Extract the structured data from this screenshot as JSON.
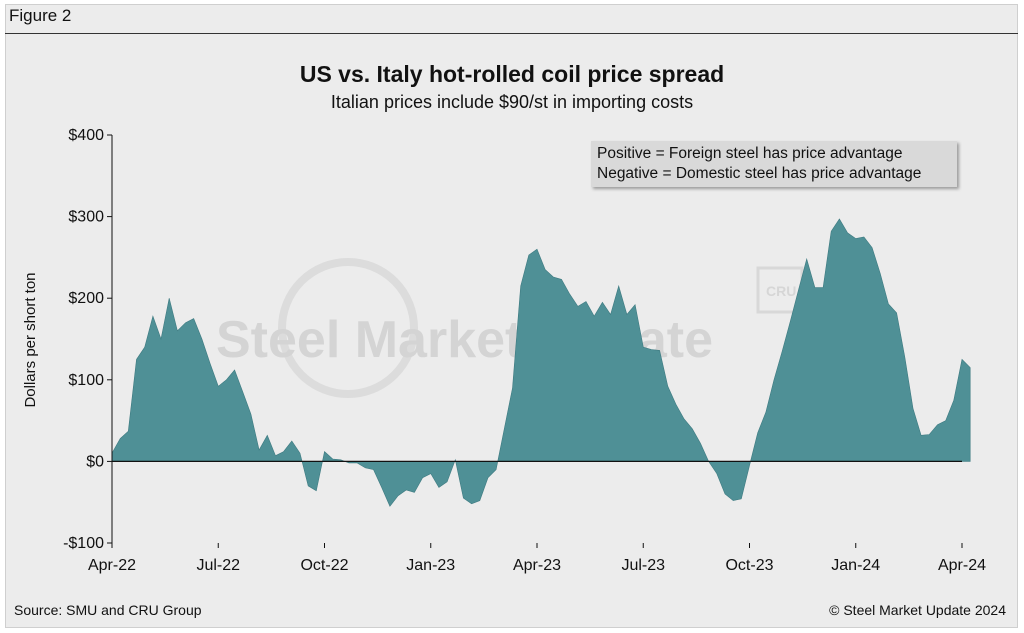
{
  "figure_label": "Figure 2",
  "source": "Source: SMU and CRU Group",
  "copyright": "© Steel Market Update 2024",
  "watermark": "Steel Market Update",
  "watermark_logo": "CRU",
  "colors": {
    "area": "#4f9096",
    "area_stroke": "#3d7a80",
    "background": "#ececec"
  },
  "chart_data": {
    "type": "area",
    "title": "US vs. Italy hot-rolled coil price spread",
    "subtitle": "Italian prices include $90/st in importing costs",
    "ylabel": "Dollars per short ton",
    "xlabel": "",
    "ylim": [
      -100,
      400
    ],
    "yticks": [
      -100,
      0,
      100,
      200,
      300,
      400
    ],
    "ytick_labels": [
      "-$100",
      "$0",
      "$100",
      "$200",
      "$300",
      "$400"
    ],
    "xtick_labels": [
      "Apr-22",
      "Jul-22",
      "Oct-22",
      "Jan-23",
      "Apr-23",
      "Jul-23",
      "Oct-23",
      "Jan-24",
      "Apr-24"
    ],
    "legend": [
      "Positive = Foreign steel has price advantage",
      "Negative = Domestic steel has price advantage"
    ],
    "legend_position": "top-right",
    "x_unit": "weeks since Apr-22 (13 weeks per quarter)",
    "series": [
      {
        "name": "US vs. Italy HRC spread",
        "points": [
          [
            0,
            10
          ],
          [
            1,
            28
          ],
          [
            2,
            37
          ],
          [
            3,
            125
          ],
          [
            4,
            140
          ],
          [
            5,
            178
          ],
          [
            6,
            150
          ],
          [
            7,
            200
          ],
          [
            8,
            160
          ],
          [
            9,
            170
          ],
          [
            10,
            175
          ],
          [
            11,
            150
          ],
          [
            12,
            120
          ],
          [
            13,
            92
          ],
          [
            14,
            100
          ],
          [
            15,
            112
          ],
          [
            16,
            85
          ],
          [
            17,
            58
          ],
          [
            18,
            14
          ],
          [
            19,
            32
          ],
          [
            20,
            7
          ],
          [
            21,
            12
          ],
          [
            22,
            25
          ],
          [
            23,
            10
          ],
          [
            24,
            -30
          ],
          [
            25,
            -36
          ],
          [
            26,
            12
          ],
          [
            27,
            3
          ],
          [
            28,
            2
          ],
          [
            29,
            -2
          ],
          [
            30,
            -2
          ],
          [
            31,
            -8
          ],
          [
            32,
            -10
          ],
          [
            33,
            -32
          ],
          [
            34,
            -55
          ],
          [
            35,
            -42
          ],
          [
            36,
            -35
          ],
          [
            37,
            -38
          ],
          [
            38,
            -20
          ],
          [
            39,
            -15
          ],
          [
            40,
            -32
          ],
          [
            41,
            -25
          ],
          [
            42,
            2
          ],
          [
            43,
            -45
          ],
          [
            44,
            -52
          ],
          [
            45,
            -48
          ],
          [
            46,
            -20
          ],
          [
            47,
            -10
          ],
          [
            48,
            40
          ],
          [
            49,
            90
          ],
          [
            50,
            215
          ],
          [
            51,
            253
          ],
          [
            52,
            260
          ],
          [
            53,
            235
          ],
          [
            54,
            226
          ],
          [
            55,
            223
          ],
          [
            56,
            205
          ],
          [
            57,
            190
          ],
          [
            58,
            196
          ],
          [
            59,
            178
          ],
          [
            60,
            195
          ],
          [
            61,
            180
          ],
          [
            62,
            215
          ],
          [
            63,
            180
          ],
          [
            64,
            192
          ],
          [
            65,
            140
          ],
          [
            66,
            137
          ],
          [
            67,
            136
          ],
          [
            68,
            92
          ],
          [
            69,
            70
          ],
          [
            70,
            52
          ],
          [
            71,
            40
          ],
          [
            72,
            22
          ],
          [
            73,
            0
          ],
          [
            74,
            -15
          ],
          [
            75,
            -40
          ],
          [
            76,
            -48
          ],
          [
            77,
            -46
          ],
          [
            78,
            -5
          ],
          [
            79,
            35
          ],
          [
            80,
            60
          ],
          [
            81,
            100
          ],
          [
            82,
            135
          ],
          [
            83,
            172
          ],
          [
            84,
            210
          ],
          [
            85,
            248
          ],
          [
            86,
            213
          ],
          [
            87,
            213
          ],
          [
            88,
            282
          ],
          [
            89,
            297
          ],
          [
            90,
            280
          ],
          [
            91,
            273
          ],
          [
            92,
            275
          ],
          [
            93,
            262
          ],
          [
            94,
            230
          ],
          [
            95,
            193
          ],
          [
            96,
            182
          ],
          [
            97,
            128
          ],
          [
            98,
            65
          ],
          [
            99,
            32
          ],
          [
            100,
            33
          ],
          [
            101,
            45
          ],
          [
            102,
            50
          ],
          [
            103,
            75
          ],
          [
            104,
            125
          ],
          [
            105,
            115
          ]
        ]
      }
    ]
  }
}
